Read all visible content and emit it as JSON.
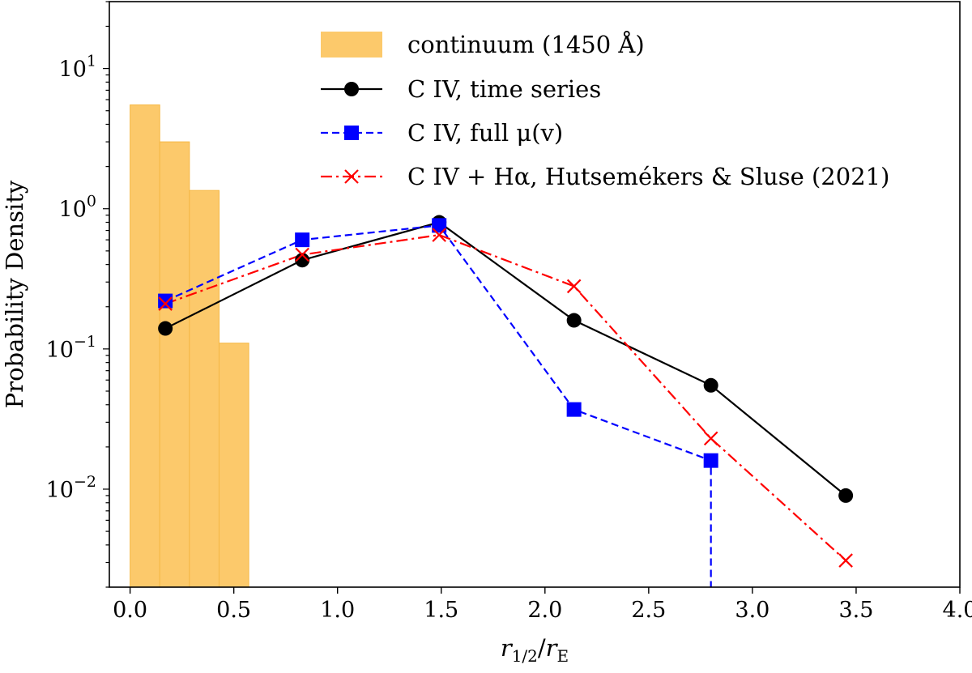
{
  "chart_data": {
    "type": "line",
    "xlabel": "r₁/₂/rₑ",
    "xlabel_parts": {
      "r": "r",
      "sub1": "1/2",
      "slash": "/",
      "r2": "r",
      "sub2": "E"
    },
    "ylabel": "Probability Density",
    "xlim": [
      -0.1,
      4.0
    ],
    "ylim": [
      0.002,
      30
    ],
    "yscale": "log",
    "grid": false,
    "legend_position": "upper-right",
    "x_ticks": [
      0.0,
      0.5,
      1.0,
      1.5,
      2.0,
      2.5,
      3.0,
      3.5,
      4.0
    ],
    "x_tick_labels": [
      "0.0",
      "0.5",
      "1.0",
      "1.5",
      "2.0",
      "2.5",
      "3.0",
      "3.5",
      "4.0"
    ],
    "y_ticks": [
      {
        "value": 10,
        "base": "10",
        "exp": "1"
      },
      {
        "value": 1,
        "base": "10",
        "exp": "0"
      },
      {
        "value": 0.1,
        "base": "10",
        "exp": "−1"
      },
      {
        "value": 0.01,
        "base": "10",
        "exp": "−2"
      }
    ],
    "histogram": {
      "name": "continuum (1450 Å)",
      "color": "#fcc96b",
      "edges": [
        0.0,
        0.143,
        0.286,
        0.429,
        0.572
      ],
      "values": [
        5.5,
        3.0,
        1.35,
        0.11
      ]
    },
    "series": [
      {
        "name": "C IV, time series",
        "color": "#000000",
        "marker": "circle",
        "linestyle": "solid",
        "x": [
          0.17,
          0.83,
          1.49,
          2.14,
          2.8,
          3.45
        ],
        "y": [
          0.14,
          0.43,
          0.8,
          0.16,
          0.055,
          0.009
        ]
      },
      {
        "name": "C IV, full μ(v)",
        "color": "#0000ff",
        "marker": "square",
        "linestyle": "dashed",
        "x": [
          0.17,
          0.83,
          1.49,
          2.14,
          2.8,
          2.8
        ],
        "y": [
          0.22,
          0.6,
          0.76,
          0.037,
          0.016,
          0.0019
        ]
      },
      {
        "name": "C IV + Hα, Hutsemékers & Sluse (2021)",
        "color": "#ff0000",
        "marker": "x",
        "linestyle": "dashdot",
        "x": [
          0.17,
          0.83,
          1.49,
          2.14,
          2.8,
          3.45
        ],
        "y": [
          0.21,
          0.47,
          0.65,
          0.28,
          0.023,
          0.0031
        ]
      }
    ]
  }
}
